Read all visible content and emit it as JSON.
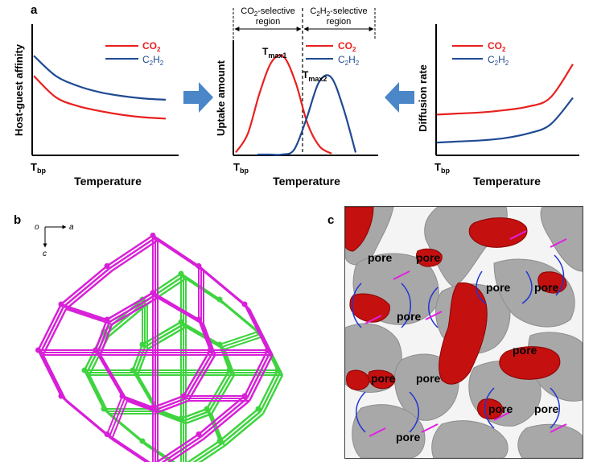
{
  "panels": {
    "a": "a",
    "b": "b",
    "c": "c"
  },
  "chart_data": [
    {
      "type": "line",
      "ylabel": "Host-guest affinity",
      "xlabel": "Temperature",
      "x_start_label": "Tbp",
      "series": [
        {
          "name": "CO2",
          "color": "#e8201e",
          "values": [
            0.62,
            0.45,
            0.38,
            0.34,
            0.31,
            0.29,
            0.28
          ]
        },
        {
          "name": "C2H2",
          "color": "#1f4a93",
          "values": [
            0.78,
            0.62,
            0.54,
            0.49,
            0.46,
            0.44,
            0.43
          ]
        }
      ]
    },
    {
      "type": "line",
      "ylabel": "Uptake amount",
      "xlabel": "Temperature",
      "x_start_label": "Tbp",
      "region_left": "CO2-selective region",
      "region_right": "C2H2-selective region",
      "peak_labels": [
        "Tmax1",
        "Tmax2"
      ],
      "series": [
        {
          "name": "CO2",
          "color": "#e8201e",
          "values": [
            0.02,
            0.2,
            0.6,
            0.9,
            0.95,
            0.7,
            0.3,
            0.08,
            0.01
          ]
        },
        {
          "name": "C2H2",
          "color": "#1f4a93",
          "values": [
            0.0,
            0.0,
            0.0,
            0.05,
            0.35,
            0.7,
            0.75,
            0.45,
            0.02
          ]
        }
      ]
    },
    {
      "type": "line",
      "ylabel": "Diffusion rate",
      "xlabel": "Temperature",
      "x_start_label": "Tbp",
      "series": [
        {
          "name": "CO2",
          "color": "#e8201e",
          "values": [
            0.35,
            0.36,
            0.37,
            0.39,
            0.42,
            0.5,
            0.8
          ]
        },
        {
          "name": "C2H2",
          "color": "#1f4a93",
          "values": [
            0.1,
            0.11,
            0.12,
            0.14,
            0.18,
            0.26,
            0.5
          ]
        }
      ]
    }
  ],
  "legend": {
    "co2": "CO",
    "co2_sub": "2",
    "c2h2_a": "C",
    "c2h2_sub1": "2",
    "c2h2_b": "H",
    "c2h2_sub2": "2"
  },
  "axes_b": {
    "o": "o",
    "a": "a",
    "c": "c"
  },
  "pores": [
    "pore",
    "pore",
    "pore",
    "pore",
    "pore",
    "pore",
    "pore",
    "pore",
    "pore",
    "pore"
  ],
  "colors": {
    "co2": "#e8201e",
    "c2h2": "#1f4a93",
    "arrow": "#4a86c8",
    "magenta": "#d81fd8",
    "green": "#3fd43f",
    "pore_red": "#c51010",
    "pore_grey": "#a9a9a9"
  }
}
